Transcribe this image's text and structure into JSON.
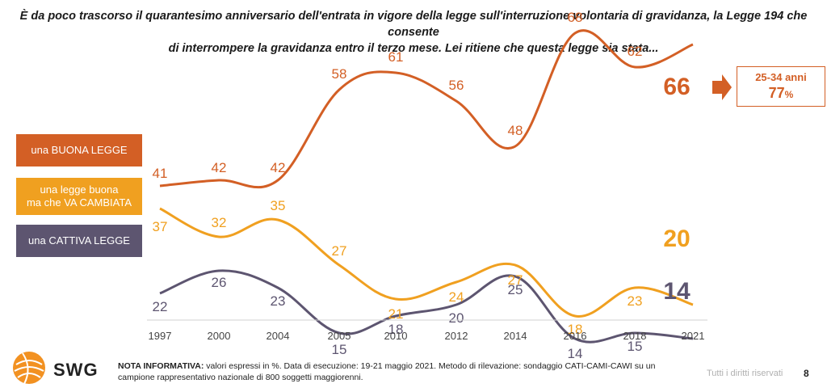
{
  "title": {
    "line1": "È da poco trascorso il quarantesimo anniversario dell'entrata in vigore della legge sull'interruzione volontaria di gravidanza, la Legge 194 che consente",
    "line2": "di interrompere la gravidanza entro il terzo mese. Lei ritiene che questa legge sia stata..."
  },
  "legend": {
    "buona": "una BUONA LEGGE",
    "cambiata_line1": "una legge buona",
    "cambiata_line2": "ma che VA CAMBIATA",
    "cattiva": "una CATTIVA LEGGE"
  },
  "callout": {
    "group": "25-34 anni",
    "value": "77",
    "unit": "%"
  },
  "colors": {
    "buona": "#d35f25",
    "cambiata": "#f0a020",
    "cattiva": "#5d5570"
  },
  "chart_data": {
    "type": "line",
    "title": "",
    "xlabel": "",
    "ylabel": "",
    "ylim": [
      0,
      80
    ],
    "categories": [
      "1997",
      "2000",
      "2004",
      "2005",
      "2010",
      "2012",
      "2014",
      "2016",
      "2018",
      "2021"
    ],
    "series": [
      {
        "key": "buona",
        "name": "una BUONA LEGGE",
        "values": [
          41,
          42,
          42,
          58,
          61,
          56,
          48,
          68,
          62,
          66
        ]
      },
      {
        "key": "cambiata",
        "name": "una legge buona ma che VA CAMBIATA",
        "values": [
          37,
          32,
          35,
          27,
          21,
          24,
          27,
          18,
          23,
          20
        ]
      },
      {
        "key": "cattiva",
        "name": "una CATTIVA LEGGE",
        "values": [
          22,
          26,
          23,
          15,
          18,
          20,
          25,
          14,
          15,
          14
        ]
      }
    ]
  },
  "footer": {
    "brand": "SWG",
    "note_label": "NOTA INFORMATIVA:",
    "note_text": " valori espressi in %. Data di esecuzione: 19-21 maggio 2021. Metodo di rilevazione: sondaggio CATI-CAMI-CAWI su un campione rappresentativo nazionale di 800 soggetti maggiorenni.",
    "rights": "Tutti i diritti riservati",
    "page": "8"
  }
}
